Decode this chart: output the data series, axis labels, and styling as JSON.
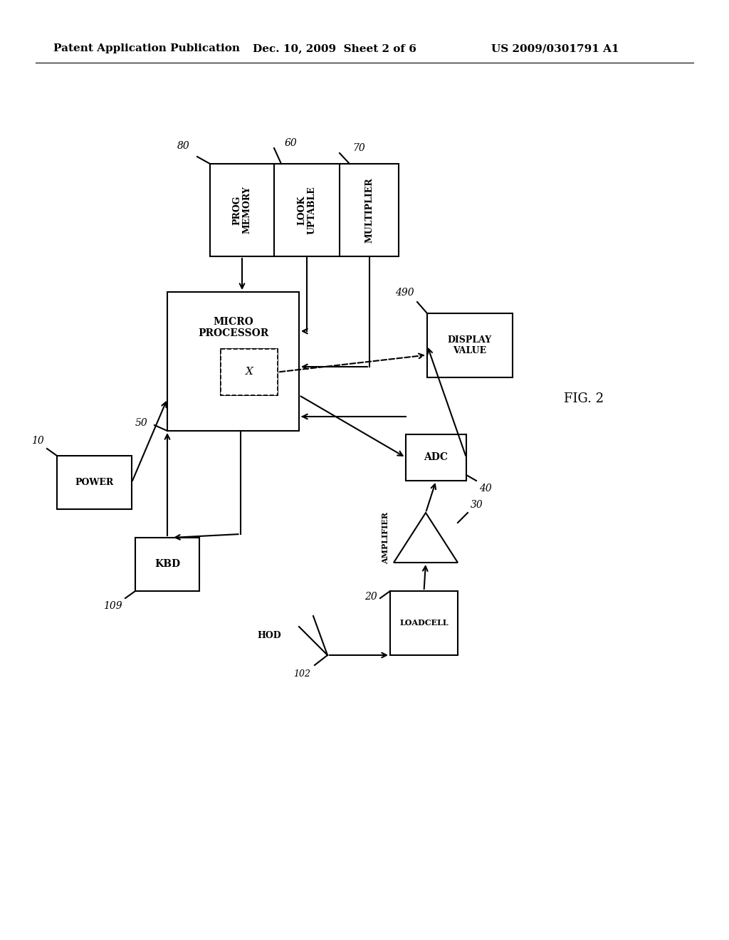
{
  "bg_color": "#ffffff",
  "header_left": "Patent Application Publication",
  "header_mid": "Dec. 10, 2009  Sheet 2 of 6",
  "header_right": "US 2009/0301791 A1",
  "fig_label": "FIG. 2",
  "lw": 1.5
}
